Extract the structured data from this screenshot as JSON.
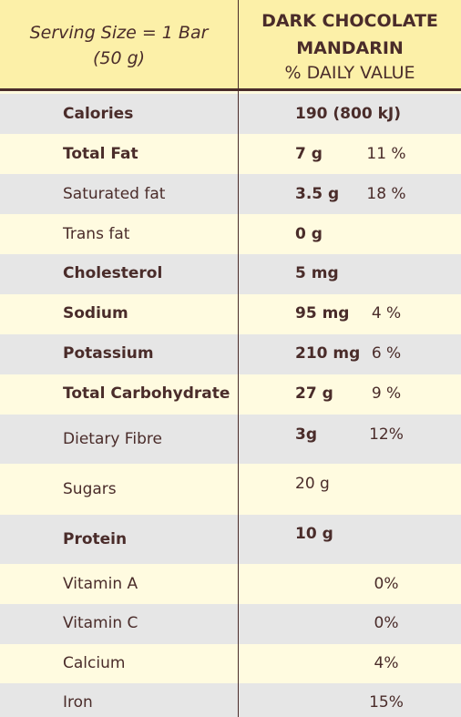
{
  "header": {
    "serving_line1": "Serving Size = 1 Bar",
    "serving_line2": "(50 g)",
    "product_line1": "DARK CHOCOLATE",
    "product_line2": "MANDARIN",
    "daily_value_label": "% DAILY VALUE"
  },
  "rows": [
    {
      "nutrient": "Calories",
      "amount": "190 (800 kJ)",
      "pct": ""
    },
    {
      "nutrient": "Total Fat",
      "amount": "7 g",
      "pct": "11 %"
    },
    {
      "nutrient": "Saturated fat",
      "amount": "3.5 g",
      "pct": "18 %"
    },
    {
      "nutrient": "Trans fat",
      "amount": "0 g",
      "pct": ""
    },
    {
      "nutrient": "Cholesterol",
      "amount": "5 mg",
      "pct": ""
    },
    {
      "nutrient": "Sodium",
      "amount": "95 mg",
      "pct": "4 %"
    },
    {
      "nutrient": "Potassium",
      "amount": "210 mg",
      "pct": "6 %"
    },
    {
      "nutrient": "Total Carbohydrate",
      "amount": "27 g",
      "pct": "9 %"
    },
    {
      "nutrient": "Dietary Fibre",
      "amount": "3g",
      "pct": "12%"
    },
    {
      "nutrient": "Sugars",
      "amount": "20 g",
      "pct": ""
    },
    {
      "nutrient": "Protein",
      "amount": "10 g",
      "pct": ""
    },
    {
      "nutrient": "Vitamin A",
      "amount": "",
      "pct": "0%"
    },
    {
      "nutrient": "Vitamin C",
      "amount": "",
      "pct": "0%"
    },
    {
      "nutrient": "Calcium",
      "amount": "",
      "pct": "4%"
    },
    {
      "nutrient": "Iron",
      "amount": "",
      "pct": "15%"
    }
  ]
}
